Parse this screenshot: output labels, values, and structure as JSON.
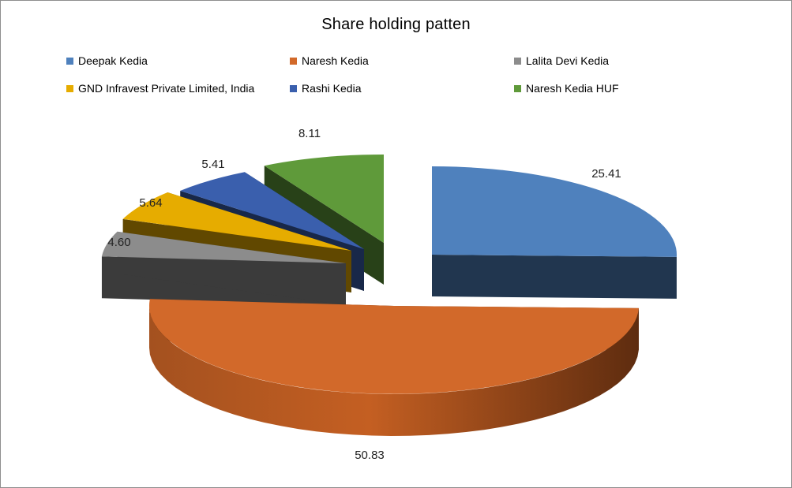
{
  "chart_data": {
    "type": "pie",
    "title": "Share holding patten",
    "legend_placement": "top",
    "slices": [
      {
        "name": "Deepak Kedia",
        "value": 25.41,
        "label": "25.41",
        "color": "#4f81bd"
      },
      {
        "name": "Naresh Kedia",
        "value": 50.83,
        "label": "50.83",
        "color": "#d2692a"
      },
      {
        "name": "Lalita Devi Kedia",
        "value": 4.6,
        "label": "4.60",
        "color": "#8c8c8c"
      },
      {
        "name": "GND Infravest Private Limited, India",
        "value": 5.64,
        "label": "5.64",
        "color": "#e6ac00"
      },
      {
        "name": "Rashi Kedia",
        "value": 5.41,
        "label": "5.41",
        "color": "#3a5fad"
      },
      {
        "name": "Naresh Kedia HUF",
        "value": 8.11,
        "label": "8.11",
        "color": "#5f9a3a"
      }
    ]
  }
}
